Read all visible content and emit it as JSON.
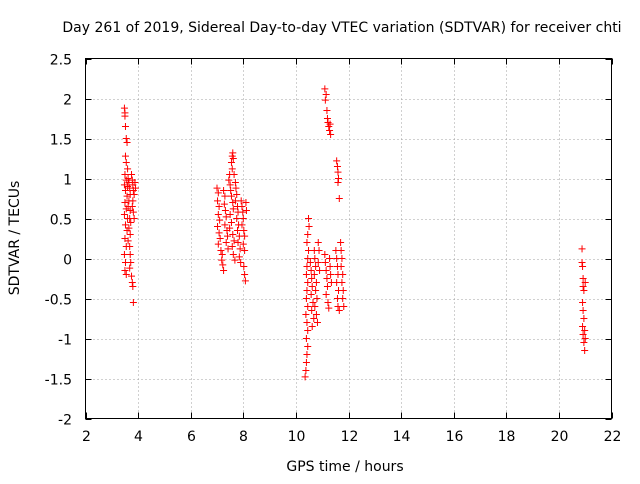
{
  "chart_data": {
    "type": "scatter",
    "title": "Day 261 of 2019, Sidereal Day-to-day VTEC variation (SDTVAR) for receiver chti",
    "xlabel": "GPS time / hours",
    "ylabel": "SDTVAR / TECUs",
    "xlim": [
      2,
      22
    ],
    "ylim": [
      -2,
      2.5
    ],
    "xticks": [
      2,
      4,
      6,
      8,
      10,
      12,
      14,
      16,
      18,
      20,
      22
    ],
    "yticks": [
      -2,
      -1.5,
      -1,
      -0.5,
      0,
      0.5,
      1,
      1.5,
      2,
      2.5
    ],
    "grid": true,
    "marker": "+",
    "series": [
      {
        "name": "SDTVAR",
        "color": "#ff0000",
        "points": [
          [
            3.48,
            1.88
          ],
          [
            3.5,
            1.82
          ],
          [
            3.5,
            1.78
          ],
          [
            3.52,
            1.65
          ],
          [
            3.55,
            1.5
          ],
          [
            3.58,
            1.45
          ],
          [
            3.52,
            1.28
          ],
          [
            3.55,
            1.2
          ],
          [
            3.6,
            1.12
          ],
          [
            3.5,
            1.05
          ],
          [
            3.55,
            0.98
          ],
          [
            3.48,
            0.92
          ],
          [
            3.52,
            0.85
          ],
          [
            3.6,
            0.9
          ],
          [
            3.58,
            0.78
          ],
          [
            3.5,
            0.7
          ],
          [
            3.55,
            0.62
          ],
          [
            3.48,
            0.55
          ],
          [
            3.6,
            0.5
          ],
          [
            3.52,
            0.42
          ],
          [
            3.58,
            0.35
          ],
          [
            3.5,
            0.25
          ],
          [
            3.55,
            0.15
          ],
          [
            3.48,
            0.05
          ],
          [
            3.52,
            -0.05
          ],
          [
            3.5,
            -0.15
          ],
          [
            3.55,
            -0.2
          ],
          [
            3.62,
            1.0
          ],
          [
            3.65,
            0.95
          ],
          [
            3.68,
            0.88
          ],
          [
            3.7,
            0.8
          ],
          [
            3.65,
            0.72
          ],
          [
            3.62,
            0.65
          ],
          [
            3.7,
            0.6
          ],
          [
            3.68,
            0.5
          ],
          [
            3.72,
            0.45
          ],
          [
            3.65,
            0.38
          ],
          [
            3.7,
            0.3
          ],
          [
            3.62,
            0.22
          ],
          [
            3.68,
            0.15
          ],
          [
            3.7,
            0.05
          ],
          [
            3.72,
            -0.05
          ],
          [
            3.68,
            -0.12
          ],
          [
            3.75,
            -0.22
          ],
          [
            3.78,
            -0.3
          ],
          [
            3.8,
            -0.35
          ],
          [
            3.82,
            -0.55
          ],
          [
            3.75,
            1.05
          ],
          [
            3.78,
            0.98
          ],
          [
            3.8,
            0.92
          ],
          [
            3.82,
            0.85
          ],
          [
            3.85,
            0.8
          ],
          [
            3.8,
            0.72
          ],
          [
            3.78,
            0.65
          ],
          [
            3.82,
            0.58
          ],
          [
            3.85,
            0.5
          ],
          [
            3.88,
            0.95
          ],
          [
            3.9,
            0.88
          ],
          [
            7.0,
            0.88
          ],
          [
            7.05,
            0.82
          ],
          [
            7.02,
            0.72
          ],
          [
            7.08,
            0.65
          ],
          [
            7.05,
            0.55
          ],
          [
            7.1,
            0.48
          ],
          [
            7.02,
            0.4
          ],
          [
            7.08,
            0.32
          ],
          [
            7.12,
            0.25
          ],
          [
            7.05,
            0.18
          ],
          [
            7.15,
            0.1
          ],
          [
            7.2,
            0.05
          ],
          [
            7.18,
            -0.02
          ],
          [
            7.22,
            -0.08
          ],
          [
            7.25,
            -0.15
          ],
          [
            7.25,
            0.85
          ],
          [
            7.3,
            0.78
          ],
          [
            7.28,
            0.68
          ],
          [
            7.32,
            0.6
          ],
          [
            7.35,
            0.52
          ],
          [
            7.3,
            0.42
          ],
          [
            7.38,
            0.35
          ],
          [
            7.4,
            0.28
          ],
          [
            7.35,
            0.2
          ],
          [
            7.42,
            0.12
          ],
          [
            7.45,
            0.98
          ],
          [
            7.48,
            1.05
          ],
          [
            7.5,
            0.92
          ],
          [
            7.52,
            0.85
          ],
          [
            7.55,
            1.2
          ],
          [
            7.58,
            1.28
          ],
          [
            7.6,
            1.32
          ],
          [
            7.62,
            1.25
          ],
          [
            7.58,
            1.12
          ],
          [
            7.65,
            1.05
          ],
          [
            7.55,
            0.78
          ],
          [
            7.6,
            0.7
          ],
          [
            7.62,
            0.62
          ],
          [
            7.5,
            0.55
          ],
          [
            7.55,
            0.45
          ],
          [
            7.48,
            0.38
          ],
          [
            7.6,
            0.3
          ],
          [
            7.65,
            0.22
          ],
          [
            7.58,
            0.15
          ],
          [
            7.62,
            0.05
          ],
          [
            7.68,
            -0.02
          ],
          [
            7.7,
            0.95
          ],
          [
            7.72,
            0.88
          ],
          [
            7.75,
            0.8
          ],
          [
            7.7,
            0.72
          ],
          [
            7.78,
            0.65
          ],
          [
            7.8,
            0.58
          ],
          [
            7.75,
            0.5
          ],
          [
            7.82,
            0.42
          ],
          [
            7.78,
            0.35
          ],
          [
            7.85,
            0.28
          ],
          [
            7.8,
            0.2
          ],
          [
            7.88,
            0.12
          ],
          [
            7.85,
            0.02
          ],
          [
            7.9,
            -0.05
          ],
          [
            7.92,
            0.72
          ],
          [
            7.95,
            0.65
          ],
          [
            7.98,
            0.58
          ],
          [
            8.0,
            0.5
          ],
          [
            7.95,
            0.42
          ],
          [
            8.02,
            0.35
          ],
          [
            8.05,
            0.28
          ],
          [
            8.0,
            0.18
          ],
          [
            8.05,
            0.1
          ],
          [
            8.02,
            -0.1
          ],
          [
            8.05,
            -0.2
          ],
          [
            8.08,
            -0.28
          ],
          [
            8.1,
            0.7
          ],
          [
            8.12,
            0.6
          ],
          [
            10.35,
            -1.48
          ],
          [
            10.38,
            -1.4
          ],
          [
            10.4,
            -1.3
          ],
          [
            10.42,
            -1.2
          ],
          [
            10.45,
            -1.1
          ],
          [
            10.4,
            -1.0
          ],
          [
            10.45,
            -0.9
          ],
          [
            10.42,
            -0.8
          ],
          [
            10.38,
            -0.7
          ],
          [
            10.45,
            -0.6
          ],
          [
            10.4,
            -0.5
          ],
          [
            10.42,
            -0.4
          ],
          [
            10.45,
            -0.3
          ],
          [
            10.4,
            -0.2
          ],
          [
            10.42,
            -0.1
          ],
          [
            10.45,
            0.0
          ],
          [
            10.48,
            0.1
          ],
          [
            10.42,
            0.2
          ],
          [
            10.45,
            0.3
          ],
          [
            10.5,
            0.4
          ],
          [
            10.48,
            0.5
          ],
          [
            10.55,
            -0.05
          ],
          [
            10.58,
            -0.15
          ],
          [
            10.6,
            -0.25
          ],
          [
            10.62,
            -0.35
          ],
          [
            10.58,
            -0.45
          ],
          [
            10.65,
            -0.55
          ],
          [
            10.6,
            -0.65
          ],
          [
            10.68,
            -0.75
          ],
          [
            10.62,
            -0.85
          ],
          [
            10.7,
            0.1
          ],
          [
            10.72,
            0.0
          ],
          [
            10.75,
            -0.1
          ],
          [
            10.7,
            -0.2
          ],
          [
            10.78,
            -0.3
          ],
          [
            10.75,
            -0.4
          ],
          [
            10.8,
            -0.5
          ],
          [
            10.72,
            -0.6
          ],
          [
            10.78,
            -0.7
          ],
          [
            10.82,
            -0.8
          ],
          [
            10.85,
            0.2
          ],
          [
            10.88,
            0.1
          ],
          [
            10.85,
            -0.05
          ],
          [
            10.9,
            -0.15
          ],
          [
            11.1,
            2.12
          ],
          [
            11.15,
            2.05
          ],
          [
            11.12,
            1.98
          ],
          [
            11.18,
            1.85
          ],
          [
            11.2,
            1.75
          ],
          [
            11.22,
            1.7
          ],
          [
            11.25,
            1.65
          ],
          [
            11.28,
            1.6
          ],
          [
            11.3,
            1.68
          ],
          [
            11.32,
            1.55
          ],
          [
            11.1,
            0.05
          ],
          [
            11.12,
            -0.05
          ],
          [
            11.15,
            -0.15
          ],
          [
            11.18,
            -0.25
          ],
          [
            11.2,
            -0.35
          ],
          [
            11.15,
            -0.45
          ],
          [
            11.22,
            -0.55
          ],
          [
            11.25,
            -0.62
          ],
          [
            11.28,
            0.0
          ],
          [
            11.3,
            -0.1
          ],
          [
            11.32,
            -0.2
          ],
          [
            11.35,
            -0.3
          ],
          [
            11.55,
            1.22
          ],
          [
            11.58,
            1.15
          ],
          [
            11.6,
            1.08
          ],
          [
            11.62,
            1.0
          ],
          [
            11.6,
            0.95
          ],
          [
            11.65,
            0.75
          ],
          [
            11.52,
            0.1
          ],
          [
            11.55,
            0.0
          ],
          [
            11.58,
            -0.1
          ],
          [
            11.6,
            -0.2
          ],
          [
            11.55,
            -0.3
          ],
          [
            11.62,
            -0.4
          ],
          [
            11.58,
            -0.5
          ],
          [
            11.6,
            -0.6
          ],
          [
            11.65,
            -0.65
          ],
          [
            11.7,
            0.2
          ],
          [
            11.72,
            0.1
          ],
          [
            11.75,
            0.0
          ],
          [
            11.72,
            -0.1
          ],
          [
            11.78,
            -0.2
          ],
          [
            11.75,
            -0.3
          ],
          [
            11.8,
            -0.4
          ],
          [
            11.78,
            -0.5
          ],
          [
            11.82,
            -0.6
          ],
          [
            20.88,
            0.12
          ],
          [
            20.9,
            -0.1
          ],
          [
            20.92,
            -0.25
          ],
          [
            20.95,
            -0.4
          ],
          [
            20.9,
            -0.55
          ],
          [
            20.92,
            -0.65
          ],
          [
            20.95,
            -0.75
          ],
          [
            20.9,
            -0.85
          ],
          [
            20.92,
            -0.95
          ],
          [
            20.95,
            -1.05
          ],
          [
            20.98,
            -1.15
          ],
          [
            20.88,
            -0.05
          ],
          [
            20.98,
            -0.9
          ],
          [
            21.0,
            -1.0
          ],
          [
            20.92,
            -0.35
          ],
          [
            21.0,
            -0.3
          ]
        ]
      }
    ]
  }
}
